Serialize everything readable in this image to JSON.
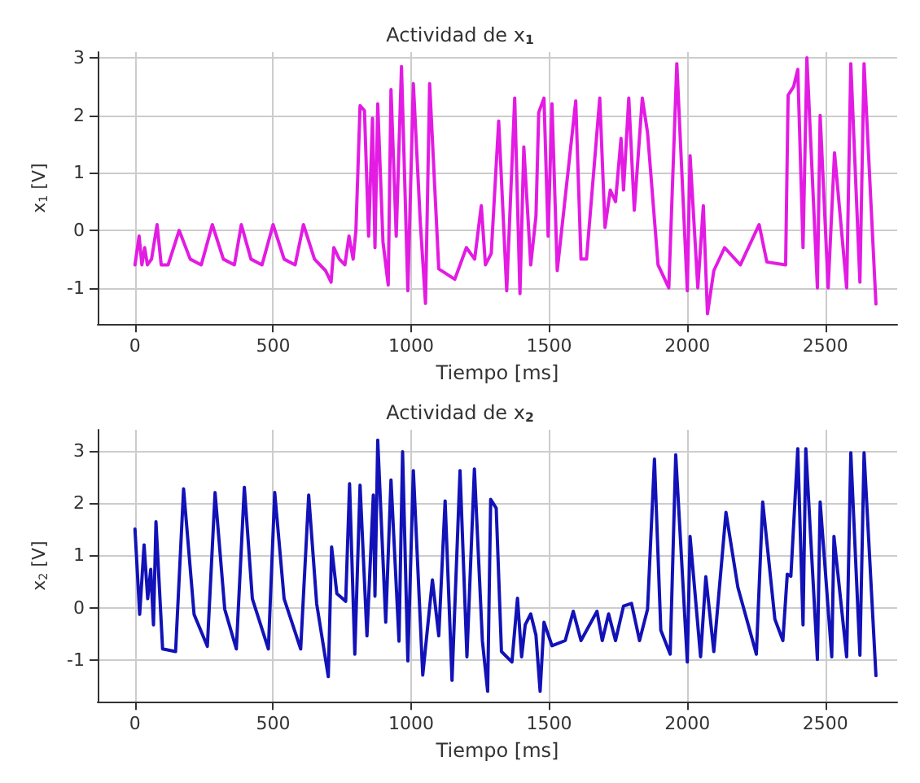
{
  "chart_data": [
    {
      "type": "line",
      "title": "Actividad de x$_{1}$",
      "xlabel": "Tiempo [ms]",
      "ylabel": "x$_{1}$ [V]",
      "grid": true,
      "marker": "none",
      "line_style": "solid",
      "xlim": [
        -135,
        2760
      ],
      "ylim": [
        -1.63,
        3.1
      ],
      "xticks": [
        0,
        500,
        1000,
        1500,
        2000,
        2500
      ],
      "yticks": [
        -1,
        0,
        1,
        2,
        3
      ],
      "series": [
        {
          "color": "#e31be3",
          "x": [
            0,
            15,
            25,
            35,
            45,
            60,
            80,
            95,
            120,
            160,
            200,
            240,
            280,
            320,
            360,
            385,
            420,
            460,
            500,
            540,
            580,
            610,
            650,
            690,
            710,
            720,
            740,
            760,
            775,
            790,
            800,
            815,
            831,
            846,
            860,
            869,
            879,
            898,
            917,
            927,
            946,
            965,
            988,
            1008,
            1033,
            1052,
            1067,
            1100,
            1158,
            1200,
            1230,
            1254,
            1269,
            1290,
            1317,
            1346,
            1375,
            1394,
            1408,
            1433,
            1452,
            1462,
            1481,
            1496,
            1510,
            1529,
            1596,
            1615,
            1635,
            1683,
            1702,
            1721,
            1740,
            1760,
            1769,
            1788,
            1808,
            1837,
            1856,
            1894,
            1933,
            1962,
            2000,
            2010,
            2038,
            2058,
            2073,
            2096,
            2135,
            2192,
            2260,
            2288,
            2356,
            2365,
            2385,
            2400,
            2419,
            2433,
            2471,
            2481,
            2510,
            2533,
            2577,
            2592,
            2625,
            2640,
            2683
          ],
          "values": [
            -0.6,
            -0.1,
            -0.6,
            -0.3,
            -0.6,
            -0.5,
            0.1,
            -0.6,
            -0.6,
            0.0,
            -0.5,
            -0.6,
            0.1,
            -0.5,
            -0.6,
            0.1,
            -0.5,
            -0.6,
            0.1,
            -0.5,
            -0.6,
            0.1,
            -0.5,
            -0.7,
            -0.9,
            -0.3,
            -0.5,
            -0.6,
            -0.1,
            -0.5,
            0.0,
            2.17,
            2.08,
            -0.1,
            1.95,
            -0.3,
            2.2,
            -0.2,
            -0.95,
            2.45,
            -0.1,
            2.85,
            -1.05,
            2.55,
            0.15,
            -1.27,
            2.55,
            -0.67,
            -0.85,
            -0.3,
            -0.5,
            0.43,
            -0.6,
            -0.4,
            1.9,
            -1.05,
            2.3,
            -1.1,
            1.45,
            -0.6,
            0.25,
            2.05,
            2.3,
            -0.1,
            2.2,
            -0.7,
            2.25,
            -0.5,
            -0.5,
            2.3,
            0.05,
            0.7,
            0.5,
            1.6,
            0.7,
            2.3,
            0.35,
            2.3,
            1.7,
            -0.6,
            -1.0,
            2.9,
            -1.05,
            1.3,
            -1.0,
            0.43,
            -1.45,
            -0.7,
            -0.3,
            -0.6,
            0.1,
            -0.55,
            -0.6,
            2.35,
            2.5,
            2.8,
            -0.3,
            3.0,
            -1.0,
            2.0,
            -1.0,
            1.35,
            -1.0,
            2.9,
            -0.9,
            2.9,
            -1.28
          ]
        }
      ]
    },
    {
      "type": "line",
      "title": "Actividad de x$_{2}$",
      "xlabel": "Tiempo [ms]",
      "ylabel": "x$_{2}$ [V]",
      "grid": true,
      "marker": "none",
      "line_style": "solid",
      "xlim": [
        -135,
        2760
      ],
      "ylim": [
        -1.8,
        3.4
      ],
      "xticks": [
        0,
        500,
        1000,
        1500,
        2000,
        2500
      ],
      "yticks": [
        -1,
        0,
        1,
        2,
        3
      ],
      "series": [
        {
          "color": "#1212b8",
          "x": [
            0,
            17,
            33,
            46,
            57,
            67,
            76,
            100,
            147,
            176,
            214,
            262,
            290,
            325,
            367,
            396,
            425,
            483,
            506,
            540,
            600,
            629,
            658,
            700,
            712,
            731,
            763,
            777,
            796,
            815,
            840,
            863,
            869,
            879,
            908,
            927,
            956,
            969,
            988,
            1008,
            1042,
            1077,
            1100,
            1123,
            1148,
            1177,
            1202,
            1229,
            1258,
            1277,
            1288,
            1308,
            1327,
            1365,
            1385,
            1400,
            1413,
            1433,
            1452,
            1467,
            1481,
            1510,
            1558,
            1587,
            1615,
            1673,
            1692,
            1715,
            1740,
            1769,
            1798,
            1827,
            1856,
            1881,
            1904,
            1938,
            1958,
            2000,
            2010,
            2048,
            2067,
            2096,
            2140,
            2183,
            2250,
            2273,
            2317,
            2346,
            2362,
            2375,
            2400,
            2419,
            2429,
            2471,
            2481,
            2523,
            2531,
            2577,
            2592,
            2625,
            2640,
            2683
          ],
          "values": [
            1.5,
            -0.13,
            1.2,
            0.17,
            0.73,
            -0.33,
            1.64,
            -0.79,
            -0.84,
            2.27,
            -0.13,
            -0.74,
            2.2,
            -0.03,
            -0.79,
            2.3,
            0.17,
            -0.79,
            2.2,
            0.17,
            -0.79,
            2.15,
            0.07,
            -1.32,
            1.16,
            0.27,
            0.12,
            2.37,
            -0.89,
            2.34,
            -0.54,
            2.15,
            0.22,
            3.2,
            -0.28,
            2.44,
            -0.64,
            2.98,
            -1.02,
            2.62,
            -1.29,
            0.53,
            -0.54,
            2.04,
            -1.39,
            2.62,
            -0.94,
            2.65,
            -0.64,
            -1.6,
            2.07,
            1.9,
            -0.84,
            -1.04,
            0.18,
            -0.94,
            -0.33,
            -0.12,
            -0.53,
            -1.6,
            -0.28,
            -0.73,
            -0.63,
            -0.07,
            -0.63,
            -0.07,
            -0.63,
            -0.12,
            -0.63,
            0.03,
            0.08,
            -0.63,
            -0.03,
            2.84,
            -0.43,
            -0.89,
            2.92,
            -1.04,
            1.36,
            -0.94,
            0.59,
            -0.84,
            1.82,
            0.39,
            -0.89,
            2.02,
            -0.22,
            -0.63,
            0.64,
            0.6,
            3.04,
            -0.33,
            3.04,
            -0.99,
            2.02,
            -0.94,
            1.36,
            -0.94,
            2.96,
            -0.91,
            2.96,
            -1.3
          ]
        }
      ]
    }
  ]
}
